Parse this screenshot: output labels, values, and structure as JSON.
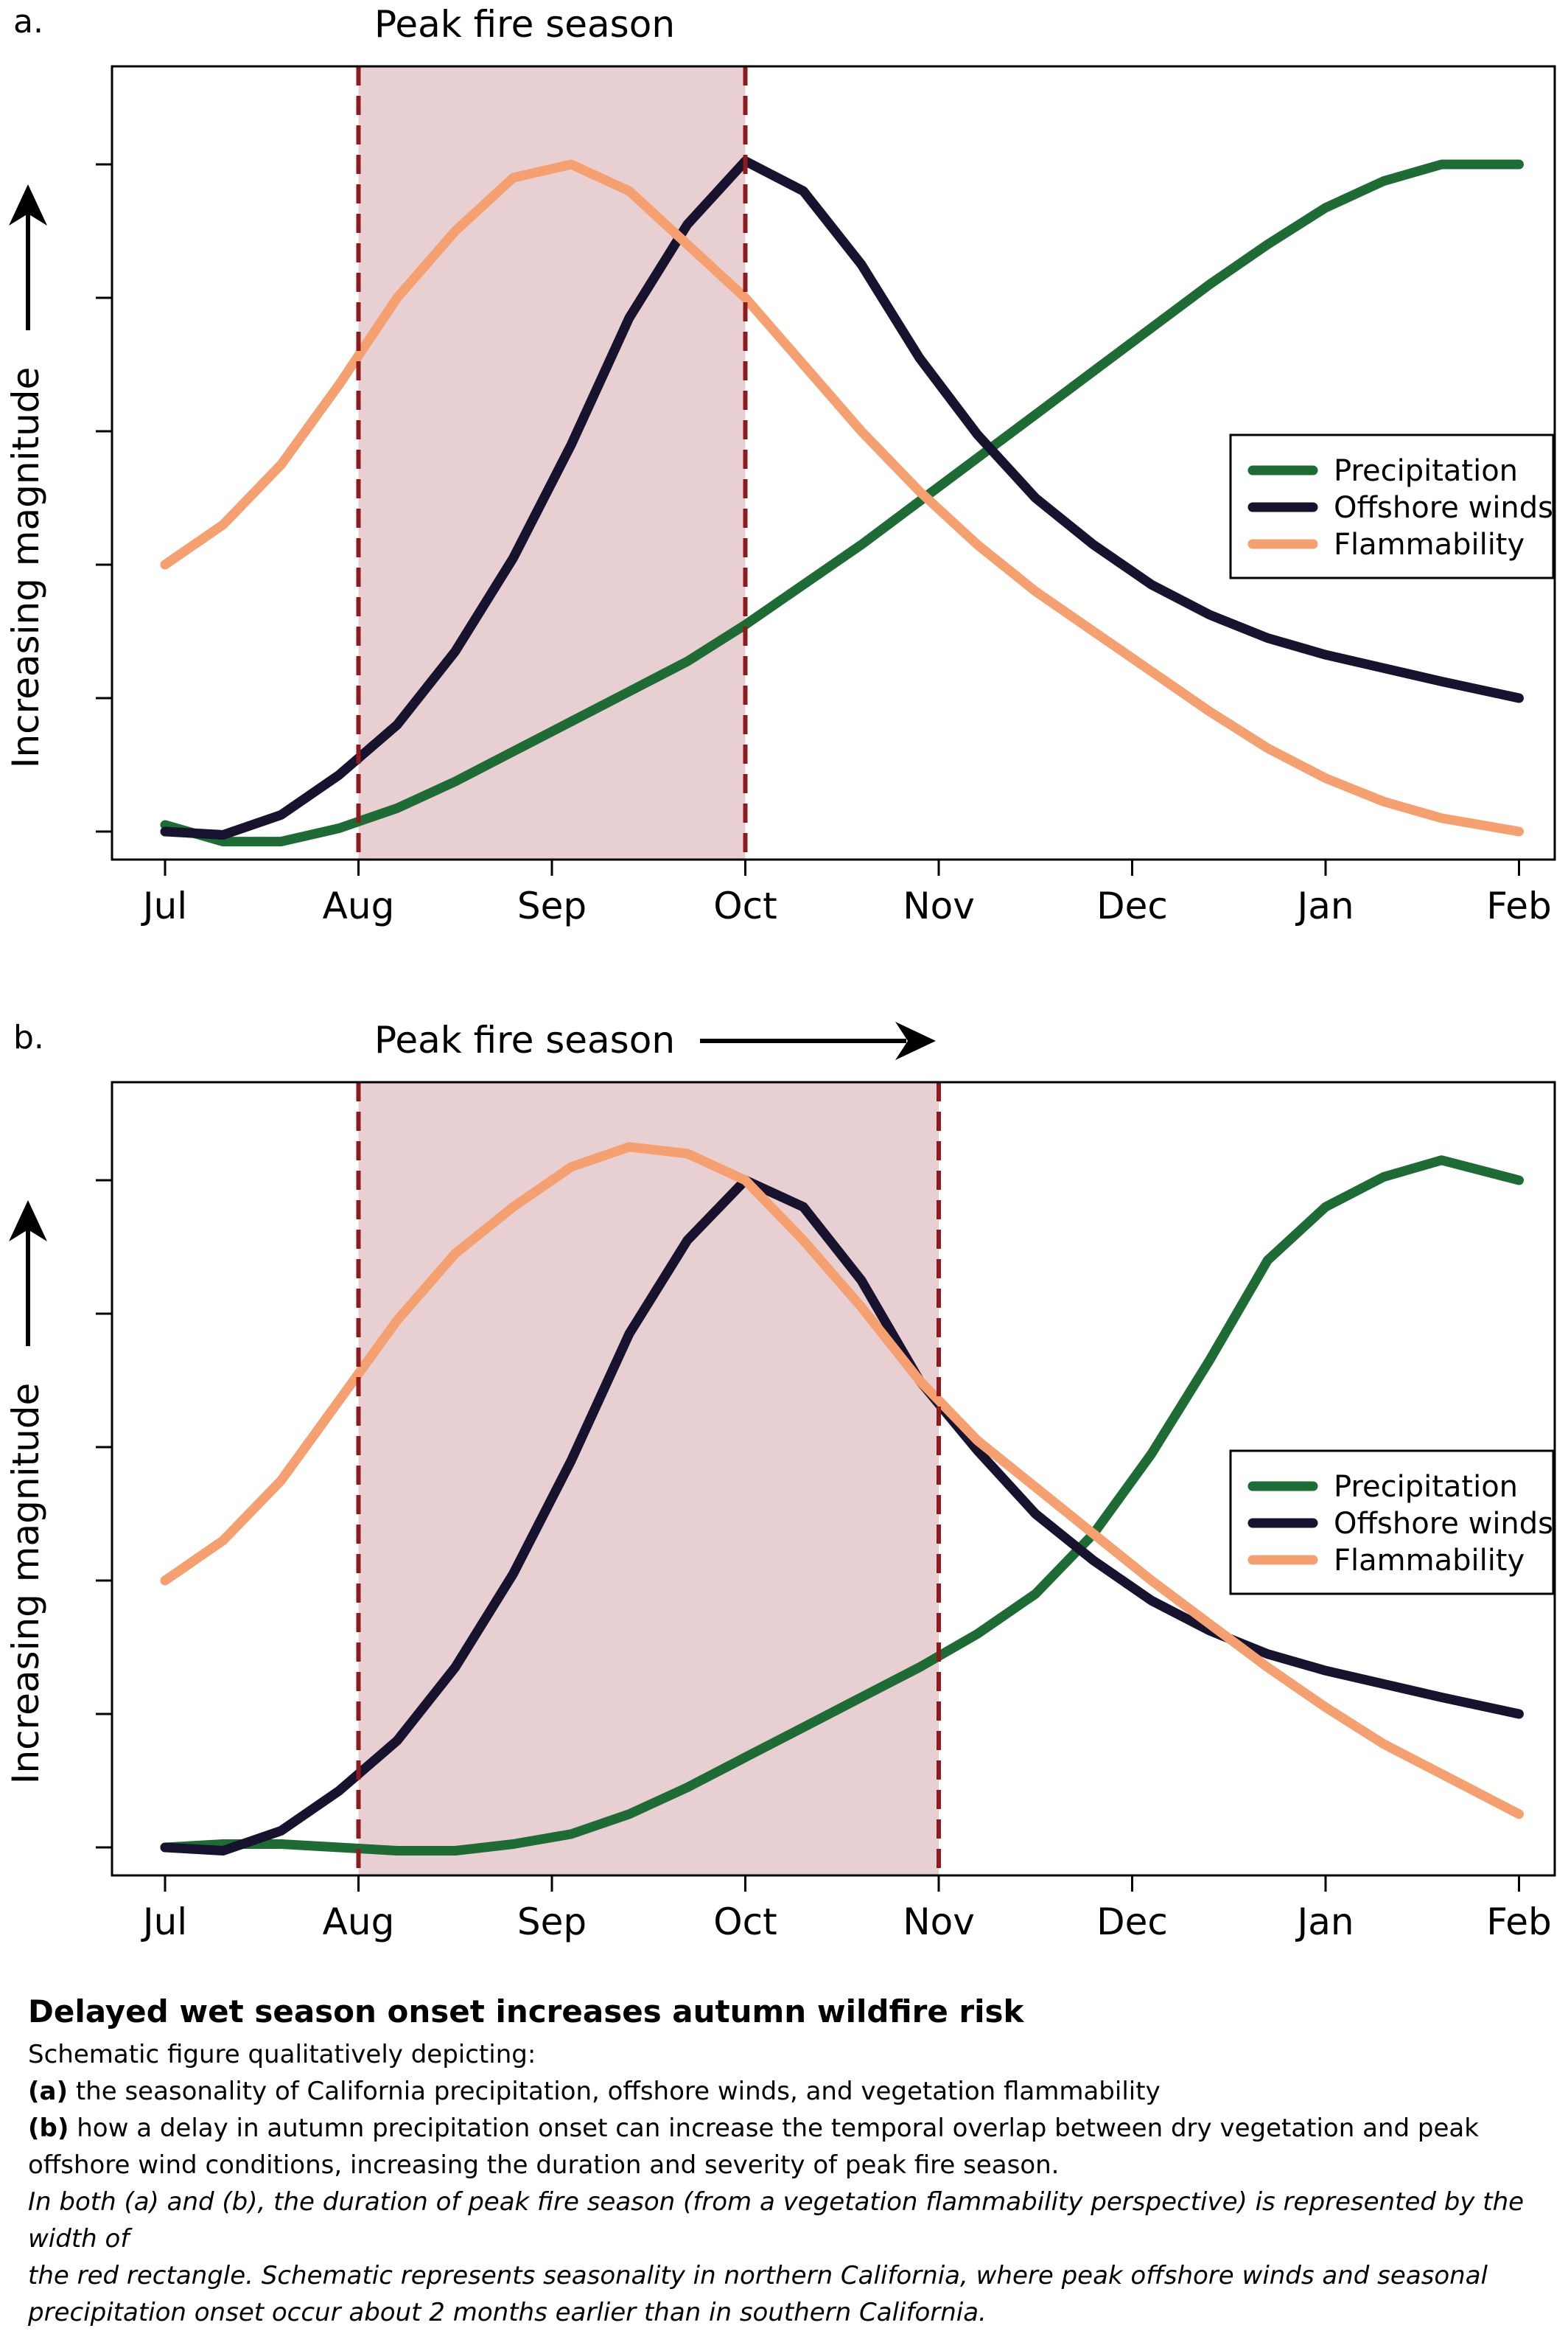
{
  "chart_data": [
    {
      "panel_label": "a.",
      "type": "line",
      "season_label": "Peak fire season",
      "season_arrow": false,
      "ylabel": "Increasing magnitude",
      "ylim": [
        0,
        10
      ],
      "x_ticks": [
        "Jul",
        "Aug",
        "Sep",
        "Oct",
        "Nov",
        "Dec",
        "Jan",
        "Feb"
      ],
      "x_tick_values": [
        0,
        1,
        2,
        3,
        4,
        5,
        6,
        7
      ],
      "peak_season": [
        1,
        3
      ],
      "legend_position": "right",
      "series": [
        {
          "name": "Precipitation",
          "color": "#1e6b35",
          "x": [
            0,
            0.3,
            0.6,
            0.9,
            1.2,
            1.5,
            1.8,
            2.1,
            2.4,
            2.7,
            3.0,
            3.3,
            3.6,
            3.9,
            4.2,
            4.5,
            4.8,
            5.1,
            5.4,
            5.7,
            6.0,
            6.3,
            6.6,
            7.0
          ],
          "y": [
            0.1,
            -0.15,
            -0.15,
            0.05,
            0.35,
            0.75,
            1.2,
            1.65,
            2.1,
            2.55,
            3.1,
            3.7,
            4.3,
            4.95,
            5.6,
            6.25,
            6.9,
            7.55,
            8.2,
            8.8,
            9.35,
            9.75,
            10.0,
            10.0
          ],
          "y_print_note": ""
        },
        {
          "name": "Offshore winds",
          "color": "#17132e",
          "x": [
            0,
            0.3,
            0.6,
            0.9,
            1.2,
            1.5,
            1.8,
            2.1,
            2.4,
            2.7,
            3.0,
            3.3,
            3.6,
            3.9,
            4.2,
            4.5,
            4.8,
            5.1,
            5.4,
            5.7,
            6.0,
            6.3,
            6.6,
            7.0
          ],
          "y": [
            0,
            -0.05,
            0.25,
            0.85,
            1.6,
            2.7,
            4.1,
            5.8,
            7.7,
            9.1,
            10.05,
            9.6,
            8.5,
            7.1,
            5.95,
            5.0,
            4.3,
            3.7,
            3.25,
            2.9,
            2.65,
            2.45,
            2.25,
            2.0
          ]
        },
        {
          "name": "Flammability",
          "color": "#f5a070",
          "x": [
            0,
            0.3,
            0.6,
            0.9,
            1.2,
            1.5,
            1.8,
            2.1,
            2.4,
            2.7,
            3.0,
            3.3,
            3.6,
            3.9,
            4.2,
            4.5,
            4.8,
            5.1,
            5.4,
            5.7,
            6.0,
            6.3,
            6.6,
            7.0
          ],
          "y": [
            4.0,
            4.6,
            5.5,
            6.7,
            8.0,
            9.0,
            9.8,
            10.0,
            9.6,
            8.8,
            8.0,
            7.0,
            6.0,
            5.1,
            4.3,
            3.6,
            3.0,
            2.4,
            1.8,
            1.25,
            0.8,
            0.45,
            0.2,
            0.0
          ]
        }
      ]
    },
    {
      "panel_label": "b.",
      "type": "line",
      "season_label": "Peak fire season",
      "season_arrow": true,
      "ylabel": "Increasing magnitude",
      "ylim": [
        0,
        10
      ],
      "x_ticks": [
        "Jul",
        "Aug",
        "Sep",
        "Oct",
        "Nov",
        "Dec",
        "Jan",
        "Feb"
      ],
      "x_tick_values": [
        0,
        1,
        2,
        3,
        4,
        5,
        6,
        7
      ],
      "peak_season": [
        1,
        4
      ],
      "legend_position": "right",
      "series": [
        {
          "name": "Precipitation",
          "color": "#1e6b35",
          "x": [
            0,
            0.3,
            0.6,
            0.9,
            1.2,
            1.5,
            1.8,
            2.1,
            2.4,
            2.7,
            3.0,
            3.3,
            3.6,
            3.9,
            4.2,
            4.5,
            4.8,
            5.1,
            5.4,
            5.7,
            6.0,
            6.3,
            6.6,
            7.0
          ],
          "y": [
            0,
            0.05,
            0.05,
            0.0,
            -0.05,
            -0.05,
            0.05,
            0.2,
            0.5,
            0.9,
            1.35,
            1.8,
            2.25,
            2.7,
            3.2,
            3.8,
            4.7,
            5.9,
            7.3,
            8.8,
            9.6,
            10.05,
            10.3,
            10.0
          ]
        },
        {
          "name": "Offshore winds",
          "color": "#17132e",
          "x": [
            0,
            0.3,
            0.6,
            0.9,
            1.2,
            1.5,
            1.8,
            2.1,
            2.4,
            2.7,
            3.0,
            3.3,
            3.6,
            3.9,
            4.2,
            4.5,
            4.8,
            5.1,
            5.4,
            5.7,
            6.0,
            6.3,
            6.6,
            7.0
          ],
          "y": [
            0,
            -0.05,
            0.25,
            0.85,
            1.6,
            2.7,
            4.1,
            5.8,
            7.7,
            9.1,
            10.0,
            9.6,
            8.5,
            7.0,
            5.95,
            5.0,
            4.3,
            3.7,
            3.25,
            2.9,
            2.65,
            2.45,
            2.25,
            2.0
          ]
        },
        {
          "name": "Flammability",
          "color": "#f5a070",
          "x": [
            0,
            0.3,
            0.6,
            0.9,
            1.2,
            1.5,
            1.8,
            2.1,
            2.4,
            2.7,
            3.0,
            3.3,
            3.6,
            3.9,
            4.2,
            4.5,
            4.8,
            5.1,
            5.4,
            5.7,
            6.0,
            6.3,
            6.6,
            7.0
          ],
          "y": [
            4.0,
            4.6,
            5.5,
            6.7,
            7.9,
            8.9,
            9.6,
            10.2,
            10.5,
            10.4,
            10.0,
            9.1,
            8.1,
            7.0,
            6.1,
            5.4,
            4.7,
            4.0,
            3.35,
            2.7,
            2.1,
            1.55,
            1.1,
            0.5
          ]
        }
      ]
    }
  ],
  "caption": {
    "title": "Delayed wet season onset increases autumn wildfire risk",
    "intro": "Schematic figure qualitatively depicting:",
    "a_label": "(a)",
    "a_text": " the seasonality of California precipitation, offshore winds, and vegetation flammability",
    "b_label": "(b)",
    "b_text_1": " how a delay in autumn precipitation onset can increase the temporal overlap between dry vegetation and peak",
    "b_text_2": "offshore wind conditions, increasing the duration and severity of peak fire season.",
    "italic_1": "In both (a) and (b), the duration of peak fire season (from a vegetation flammability perspective) is represented by the width of",
    "italic_2": "the red rectangle. Schematic represents seasonality in northern California, where peak offshore winds and seasonal",
    "italic_3": "precipitation onset occur about 2 months earlier than in southern California."
  }
}
